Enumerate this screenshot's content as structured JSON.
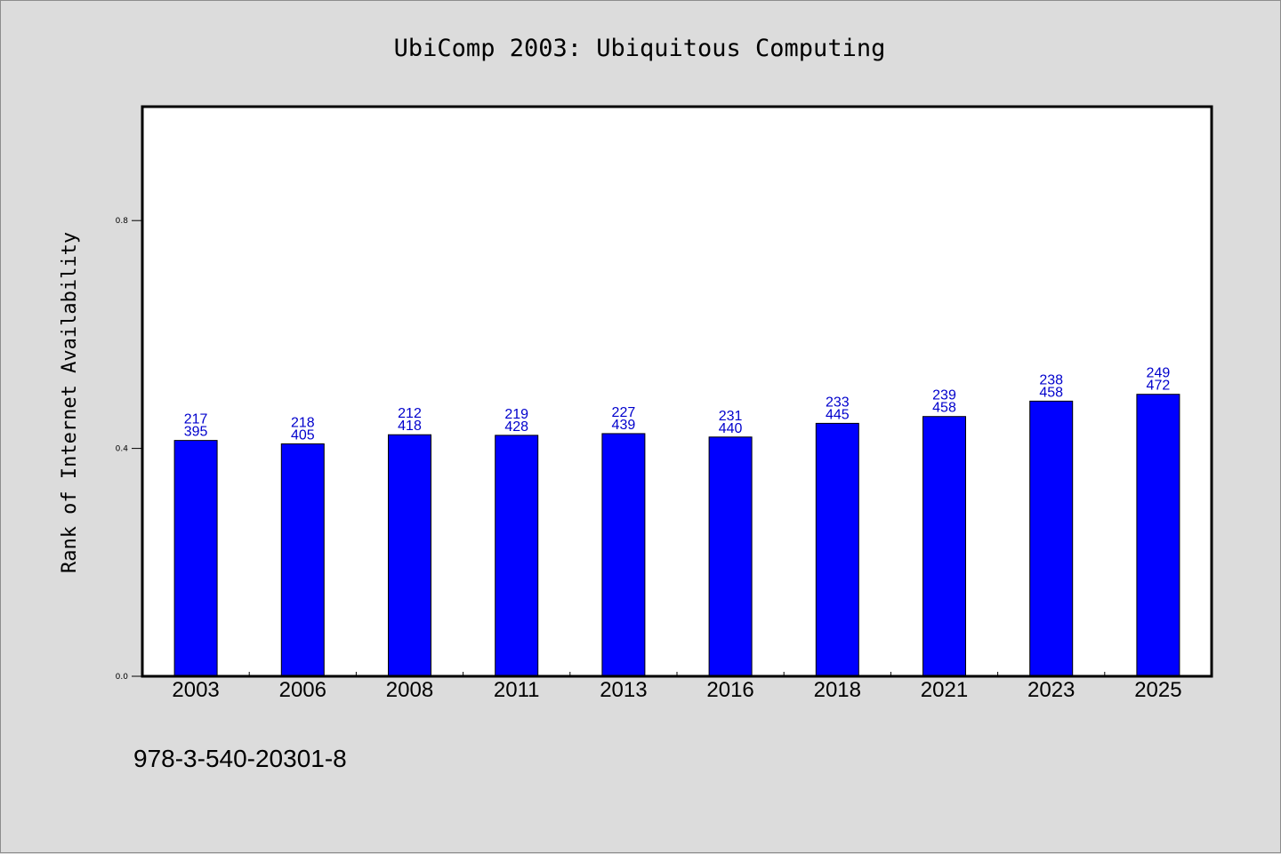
{
  "chart_data": {
    "type": "bar",
    "title": "UbiComp 2003: Ubiquitous Computing",
    "ylabel": "Rank of Internet Availability",
    "xlabel": "",
    "ylim": [
      0,
      1.0
    ],
    "yticks": [
      0.0,
      0.4,
      0.8
    ],
    "ytick_labels": [
      "0.0",
      "0.4",
      "0.8"
    ],
    "grid": false,
    "categories": [
      "2003",
      "2006",
      "2008",
      "2011",
      "2013",
      "2016",
      "2018",
      "2021",
      "2023",
      "2025"
    ],
    "values": [
      0.414,
      0.408,
      0.424,
      0.423,
      0.426,
      0.42,
      0.444,
      0.456,
      0.483,
      0.495
    ],
    "labels_top": [
      "217",
      "218",
      "212",
      "219",
      "227",
      "231",
      "233",
      "239",
      "238",
      "249"
    ],
    "labels_bottom": [
      "395",
      "405",
      "418",
      "428",
      "439",
      "440",
      "445",
      "458",
      "458",
      "472"
    ],
    "bar_color": "#0000ff",
    "label_color": "#0000cc"
  },
  "footer": {
    "text": "978-3-540-20301-8"
  }
}
